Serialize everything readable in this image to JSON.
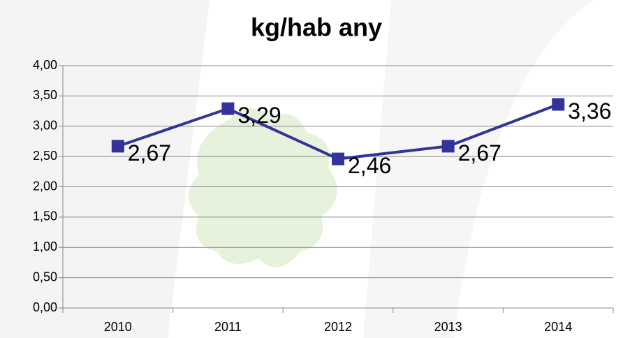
{
  "chart_data": {
    "type": "line",
    "title": "kg/hab any",
    "categories": [
      "2010",
      "2011",
      "2012",
      "2013",
      "2014"
    ],
    "series": [
      {
        "color": "#333399",
        "values": [
          2.67,
          3.29,
          2.46,
          2.67,
          3.36
        ],
        "value_labels": [
          "2,67",
          "3,29",
          "2,46",
          "2,67",
          "3,36"
        ]
      }
    ],
    "ylim": [
      0,
      4
    ],
    "yticks": [
      {
        "value": 0,
        "label": "0,00"
      },
      {
        "value": 0.5,
        "label": "0,50"
      },
      {
        "value": 1,
        "label": "1,00"
      },
      {
        "value": 1.5,
        "label": "1,50"
      },
      {
        "value": 2,
        "label": "2,00"
      },
      {
        "value": 2.5,
        "label": "2,50"
      },
      {
        "value": 3,
        "label": "3,00"
      },
      {
        "value": 3.5,
        "label": "3,50"
      },
      {
        "value": 4,
        "label": "4,00"
      }
    ],
    "grid": true
  }
}
